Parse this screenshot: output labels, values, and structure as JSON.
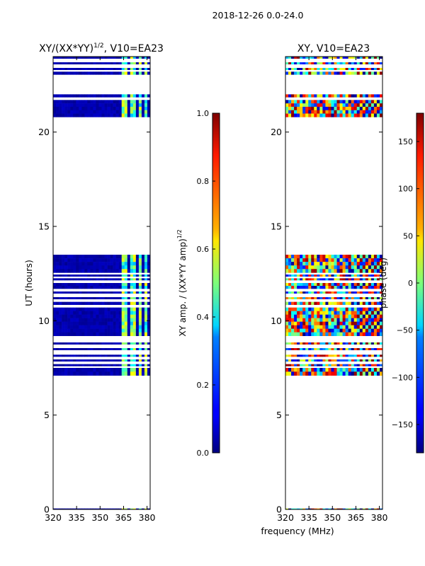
{
  "suptitle": "2018-12-26 0.0-24.0",
  "chart_data": [
    {
      "type": "heatmap",
      "title_main": "XY/(XX*YY)",
      "title_exp": "1/2",
      "title_rest": ", V10=EA23",
      "ylabel": "UT (hours)",
      "xlabel": "",
      "xlim": [
        320,
        382
      ],
      "ylim": [
        0,
        24
      ],
      "xticks": [
        320,
        335,
        350,
        365,
        380
      ],
      "yticks": [
        0,
        5,
        10,
        15,
        20
      ],
      "colormap": "jet",
      "colorbar": {
        "label_main": "XY amp. / (XX*YY amp)",
        "label_exp": "1/2",
        "range": [
          0.0,
          1.0
        ],
        "ticks": [
          "0.0",
          "0.2",
          "0.4",
          "0.6",
          "0.8",
          "1.0"
        ],
        "tick_values": [
          0.0,
          0.2,
          0.4,
          0.6,
          0.8,
          1.0
        ]
      },
      "data_bands_ut_hours": [
        [
          0.0,
          0.05
        ],
        [
          7.1,
          7.5
        ],
        [
          7.6,
          7.7
        ],
        [
          7.85,
          7.95
        ],
        [
          8.1,
          8.2
        ],
        [
          8.45,
          8.55
        ],
        [
          8.75,
          8.85
        ],
        [
          9.2,
          10.7
        ],
        [
          10.85,
          11.0
        ],
        [
          11.15,
          11.25
        ],
        [
          11.45,
          11.55
        ],
        [
          11.7,
          12.0
        ],
        [
          12.15,
          12.25
        ],
        [
          12.35,
          12.45
        ],
        [
          12.55,
          13.5
        ],
        [
          20.8,
          21.7
        ],
        [
          21.85,
          22.0
        ],
        [
          23.05,
          23.2
        ],
        [
          23.3,
          23.4
        ],
        [
          23.6,
          23.7
        ],
        [
          23.9,
          24.0
        ]
      ],
      "bright_channels_mhz": [
        [
          363,
          367
        ],
        [
          369,
          372
        ],
        [
          374,
          377
        ],
        [
          378,
          380
        ]
      ],
      "typical_values": "near 0.0 (dark blue) in most channels, 0.3-0.6 in channels 363-380 MHz"
    },
    {
      "type": "heatmap",
      "title": "XY, V10=EA23",
      "ylabel": "",
      "xlabel": "frequency (MHz)",
      "xlim": [
        320,
        382
      ],
      "ylim": [
        0,
        24
      ],
      "xticks": [
        320,
        335,
        350,
        365,
        380
      ],
      "yticks": [
        0,
        5,
        10,
        15,
        20
      ],
      "colormap": "jet",
      "colorbar": {
        "label": "phase (deg)",
        "range": [
          -180,
          180
        ],
        "ticks": [
          "−150",
          "−100",
          "−50",
          "0",
          "50",
          "100",
          "150"
        ],
        "tick_values": [
          -150,
          -100,
          -50,
          0,
          50,
          100,
          150
        ]
      },
      "data_bands_ut_hours": [
        [
          0.0,
          0.05
        ],
        [
          7.1,
          7.5
        ],
        [
          7.6,
          7.7
        ],
        [
          7.85,
          7.95
        ],
        [
          8.1,
          8.2
        ],
        [
          8.45,
          8.55
        ],
        [
          8.75,
          8.85
        ],
        [
          9.2,
          10.7
        ],
        [
          10.85,
          11.0
        ],
        [
          11.15,
          11.25
        ],
        [
          11.45,
          11.55
        ],
        [
          11.7,
          12.0
        ],
        [
          12.15,
          12.25
        ],
        [
          12.35,
          12.45
        ],
        [
          12.55,
          13.5
        ],
        [
          20.8,
          21.7
        ],
        [
          21.85,
          22.0
        ],
        [
          23.05,
          23.2
        ],
        [
          23.3,
          23.4
        ],
        [
          23.6,
          23.7
        ],
        [
          23.9,
          24.0
        ]
      ],
      "typical_values": "noisy phase spanning -180 to 180 deg"
    }
  ]
}
